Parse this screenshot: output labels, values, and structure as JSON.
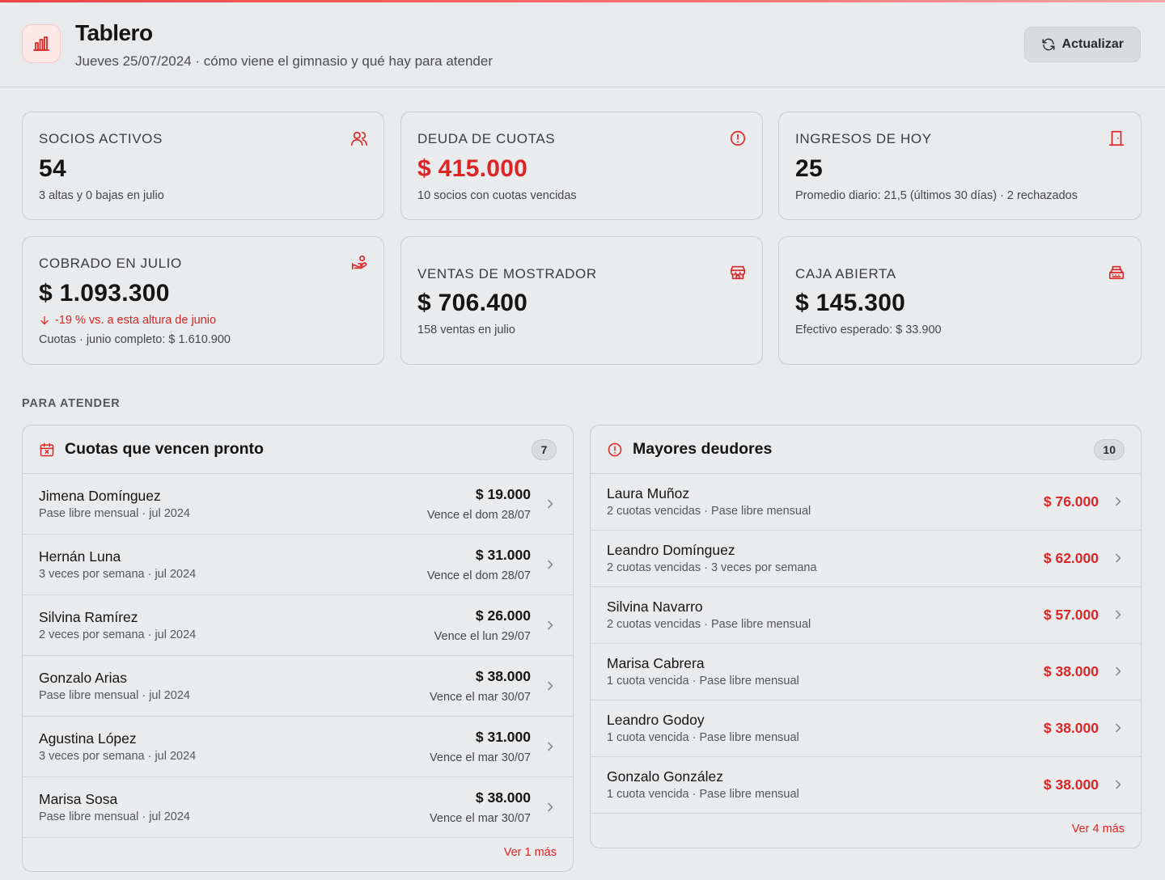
{
  "header": {
    "title": "Tablero",
    "subtitle": "Jueves 25/07/2024 · cómo viene el gimnasio y qué hay para atender",
    "refresh_label": "Actualizar"
  },
  "colors": {
    "accent": "#dc2626",
    "background": "#e9eaec",
    "card": "#eaebed",
    "border": "#c9ccd1"
  },
  "kpis": [
    {
      "label": "SOCIOS ACTIVOS",
      "value": "54",
      "sub": "3 altas y 0 bajas en julio",
      "icon": "users-icon"
    },
    {
      "label": "DEUDA DE CUOTAS",
      "value": "$ 415.000",
      "sub": "10 socios con cuotas vencidas",
      "icon": "alert-circle-icon",
      "value_color": "#dc2626"
    },
    {
      "label": "INGRESOS DE HOY",
      "value": "25",
      "sub": "Promedio diario: 21,5 (últimos 30 días) · 2 rechazados",
      "icon": "door-icon"
    },
    {
      "label": "COBRADO EN JULIO",
      "value": "$ 1.093.300",
      "trend": "-19 % vs. a esta altura de junio",
      "sub": "Cuotas · junio completo: $ 1.610.900",
      "icon": "hand-coins-icon"
    },
    {
      "label": "VENTAS DE MOSTRADOR",
      "value": "$ 706.400",
      "sub": "158 ventas en julio",
      "icon": "store-icon"
    },
    {
      "label": "CAJA ABIERTA",
      "value": "$ 145.300",
      "sub": "Efectivo esperado: $ 33.900",
      "icon": "cash-register-icon"
    }
  ],
  "section_label": "PARA ATENDER",
  "upcoming": {
    "title": "Cuotas que vencen pronto",
    "count": "7",
    "more": "Ver 1 más",
    "items": [
      {
        "name": "Jimena Domínguez",
        "meta": "Pase libre mensual · jul 2024",
        "amount": "$ 19.000",
        "due": "Vence el dom 28/07"
      },
      {
        "name": "Hernán Luna",
        "meta": "3 veces por semana · jul 2024",
        "amount": "$ 31.000",
        "due": "Vence el dom 28/07"
      },
      {
        "name": "Silvina Ramírez",
        "meta": "2 veces por semana · jul 2024",
        "amount": "$ 26.000",
        "due": "Vence el lun 29/07"
      },
      {
        "name": "Gonzalo Arias",
        "meta": "Pase libre mensual · jul 2024",
        "amount": "$ 38.000",
        "due": "Vence el mar 30/07"
      },
      {
        "name": "Agustina López",
        "meta": "3 veces por semana · jul 2024",
        "amount": "$ 31.000",
        "due": "Vence el mar 30/07"
      },
      {
        "name": "Marisa Sosa",
        "meta": "Pase libre mensual · jul 2024",
        "amount": "$ 38.000",
        "due": "Vence el mar 30/07"
      }
    ]
  },
  "debtors": {
    "title": "Mayores deudores",
    "count": "10",
    "more": "Ver 4 más",
    "items": [
      {
        "name": "Laura Muñoz",
        "meta": "2 cuotas vencidas · Pase libre mensual",
        "amount": "$ 76.000"
      },
      {
        "name": "Leandro Domínguez",
        "meta": "2 cuotas vencidas · 3 veces por semana",
        "amount": "$ 62.000"
      },
      {
        "name": "Silvina Navarro",
        "meta": "2 cuotas vencidas · Pase libre mensual",
        "amount": "$ 57.000"
      },
      {
        "name": "Marisa Cabrera",
        "meta": "1 cuota vencida · Pase libre mensual",
        "amount": "$ 38.000"
      },
      {
        "name": "Leandro Godoy",
        "meta": "1 cuota vencida · Pase libre mensual",
        "amount": "$ 38.000"
      },
      {
        "name": "Gonzalo González",
        "meta": "1 cuota vencida · Pase libre mensual",
        "amount": "$ 38.000"
      }
    ]
  }
}
